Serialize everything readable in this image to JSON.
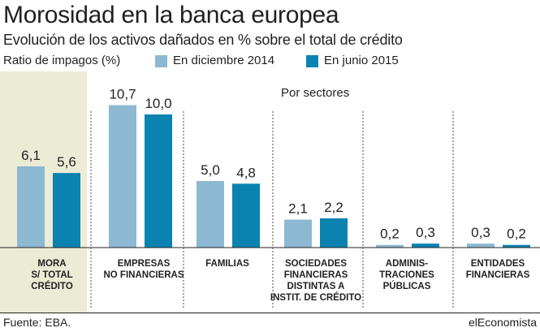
{
  "title": "Morosidad en la banca europea",
  "subtitle": "Evolución de los activos dañados en % sobre el total de crédito",
  "legend": {
    "ylabel": "Ratio de impagos (%)",
    "items": [
      {
        "label": "En diciembre 2014",
        "color": "#8db8d2"
      },
      {
        "label": "En junio 2015",
        "color": "#0b83b0"
      }
    ]
  },
  "annotation": "Por sectores",
  "colors": {
    "highlight_panel": "#ecebd6",
    "axis": "#231f20",
    "divider": "#231f20"
  },
  "footer": {
    "source": "Fuente: EBA.",
    "brand": "elEconomista"
  },
  "chart_data": {
    "type": "bar",
    "categories": [
      [
        "MORA",
        "S/ TOTAL",
        "CRÉDITO"
      ],
      [
        "EMPRESAS",
        "NO FINANCIERAS"
      ],
      [
        "FAMILIAS"
      ],
      [
        "SOCIEDADES",
        "FINANCIERAS",
        "DISTINTAS A",
        "INSTIT. DE CRÉDITO"
      ],
      [
        "ADMINIS-",
        "TRACIONES",
        "PÚBLICAS"
      ],
      [
        "ENTIDADES",
        "FINANCIERAS"
      ]
    ],
    "series": [
      {
        "name": "En diciembre 2014",
        "values": [
          6.1,
          10.7,
          5.0,
          2.1,
          0.2,
          0.3
        ],
        "labels": [
          "6,1",
          "10,7",
          "5,0",
          "2,1",
          "0,2",
          "0,3"
        ],
        "color": "#8db8d2"
      },
      {
        "name": "En junio 2015",
        "values": [
          5.6,
          10.0,
          4.8,
          2.2,
          0.3,
          0.2
        ],
        "labels": [
          "5,6",
          "10,0",
          "4,8",
          "2,2",
          "0,3",
          "0,2"
        ],
        "color": "#0b83b0"
      }
    ],
    "ylim": [
      0,
      12
    ],
    "grid": false,
    "legend_position": "top",
    "highlighted_category": 0
  }
}
